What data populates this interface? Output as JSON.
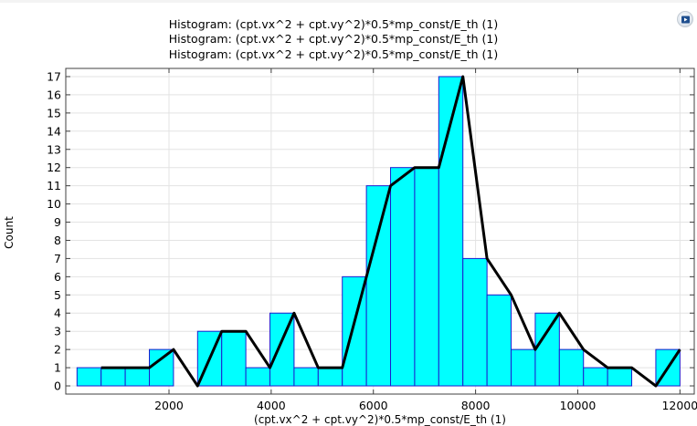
{
  "chart_data": {
    "type": "bar",
    "titles": [
      "Histogram: (cpt.vx^2 + cpt.vy^2)*0.5*mp_const/E_th (1)",
      "Histogram: (cpt.vx^2 + cpt.vy^2)*0.5*mp_const/E_th (1)",
      "Histogram: (cpt.vx^2 + cpt.vy^2)*0.5*mp_const/E_th (1)"
    ],
    "xlabel": "(cpt.vx^2 + cpt.vy^2)*0.5*mp_const/E_th (1)",
    "ylabel": "Count",
    "xlim": [
      -20,
      12280
    ],
    "ylim": [
      -0.45,
      17.45
    ],
    "xticks": [
      2000,
      4000,
      6000,
      8000,
      10000,
      12000
    ],
    "yticks": [
      0,
      1,
      2,
      3,
      4,
      5,
      6,
      7,
      8,
      9,
      10,
      11,
      12,
      13,
      14,
      15,
      16,
      17
    ],
    "grid": true,
    "bin_edges": [
      200,
      672,
      1144,
      1616,
      2088,
      2560,
      3032,
      3504,
      3976,
      4448,
      4920,
      5392,
      5864,
      6336,
      6808,
      7280,
      7752,
      8224,
      8696,
      9168,
      9640,
      10112,
      10584,
      11056,
      11528,
      12000
    ],
    "series": [
      {
        "kind": "histogram",
        "values": [
          1,
          1,
          1,
          2,
          0,
          3,
          3,
          1,
          4,
          1,
          1,
          6,
          11,
          12,
          12,
          17,
          7,
          5,
          2,
          4,
          2,
          1,
          1,
          0,
          2
        ],
        "fill": "#00ffff",
        "edge": "#1c1ccf"
      },
      {
        "kind": "line",
        "x": [
          672,
          1144,
          1616,
          2088,
          2560,
          3032,
          3504,
          3976,
          4448,
          4920,
          5392,
          5864,
          6336,
          6808,
          7280,
          7752,
          8224,
          8696,
          9168,
          9640,
          10112,
          10584,
          11056,
          11528,
          12000
        ],
        "y": [
          1,
          1,
          1,
          2,
          0,
          3,
          3,
          1,
          4,
          1,
          1,
          6,
          11,
          12,
          12,
          17,
          7,
          5,
          2,
          4,
          2,
          1,
          1,
          0,
          2
        ],
        "color": "#000000"
      }
    ]
  }
}
